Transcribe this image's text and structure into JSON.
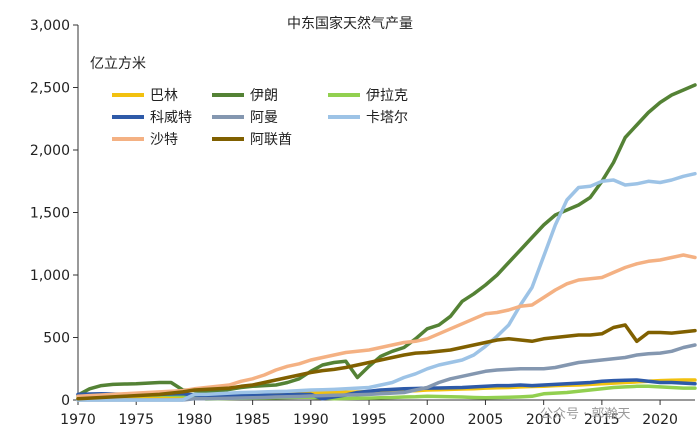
{
  "watermark": "公众号 · 郭瀚天",
  "chart_data": {
    "type": "line",
    "title": "中东国家天然气产量",
    "unit_label": "亿立方米",
    "xlabel": "",
    "ylabel": "",
    "xlim": [
      1970,
      2023
    ],
    "ylim": [
      0,
      3000
    ],
    "x_ticks": [
      1970,
      1975,
      1980,
      1985,
      1990,
      1995,
      2000,
      2005,
      2010,
      2015,
      2020
    ],
    "y_ticks": [
      0,
      500,
      1000,
      1500,
      2000,
      2500,
      3000
    ],
    "y_tick_labels": [
      "0",
      "500",
      "1,000",
      "1,500",
      "2,000",
      "2,500",
      "3,000"
    ],
    "legend_position": "top-left",
    "grid": false,
    "x": [
      1970,
      1971,
      1972,
      1973,
      1974,
      1975,
      1976,
      1977,
      1978,
      1979,
      1980,
      1981,
      1982,
      1983,
      1984,
      1985,
      1986,
      1987,
      1988,
      1989,
      1990,
      1991,
      1992,
      1993,
      1994,
      1995,
      1996,
      1997,
      1998,
      1999,
      2000,
      2001,
      2002,
      2003,
      2004,
      2005,
      2006,
      2007,
      2008,
      2009,
      2010,
      2011,
      2012,
      2013,
      2014,
      2015,
      2016,
      2017,
      2018,
      2019,
      2020,
      2021,
      2022,
      2023
    ],
    "series": [
      {
        "name": "巴林",
        "color": "#f2c10f",
        "values": [
          10,
          12,
          14,
          15,
          16,
          18,
          20,
          22,
          25,
          28,
          30,
          32,
          35,
          38,
          40,
          42,
          45,
          48,
          50,
          52,
          55,
          58,
          60,
          62,
          64,
          66,
          68,
          70,
          72,
          74,
          80,
          82,
          85,
          88,
          90,
          95,
          98,
          100,
          105,
          108,
          110,
          115,
          118,
          120,
          125,
          130,
          135,
          140,
          145,
          150,
          155,
          158,
          160,
          160
        ]
      },
      {
        "name": "伊朗",
        "color": "#548235",
        "values": [
          40,
          90,
          115,
          125,
          128,
          130,
          135,
          140,
          140,
          80,
          75,
          60,
          70,
          85,
          100,
          110,
          115,
          120,
          140,
          170,
          230,
          280,
          300,
          310,
          180,
          270,
          350,
          390,
          420,
          490,
          570,
          600,
          670,
          790,
          850,
          920,
          1000,
          1100,
          1200,
          1300,
          1400,
          1480,
          1520,
          1560,
          1620,
          1750,
          1900,
          2100,
          2200,
          2300,
          2380,
          2440,
          2480,
          2520
        ]
      },
      {
        "name": "伊拉克",
        "color": "#92d050",
        "values": [
          25,
          28,
          30,
          32,
          34,
          36,
          38,
          40,
          38,
          35,
          30,
          8,
          10,
          12,
          14,
          15,
          16,
          18,
          20,
          22,
          22,
          15,
          10,
          12,
          14,
          15,
          18,
          20,
          24,
          26,
          30,
          28,
          26,
          24,
          20,
          18,
          20,
          22,
          25,
          30,
          50,
          55,
          60,
          70,
          80,
          90,
          100,
          105,
          110,
          110,
          105,
          100,
          95,
          95
        ]
      },
      {
        "name": "科威特",
        "color": "#2e5aa8",
        "values": [
          45,
          48,
          50,
          48,
          45,
          44,
          42,
          45,
          48,
          50,
          40,
          35,
          30,
          32,
          34,
          36,
          38,
          40,
          42,
          45,
          45,
          10,
          25,
          40,
          60,
          70,
          80,
          85,
          90,
          92,
          95,
          96,
          98,
          100,
          105,
          110,
          115,
          115,
          120,
          115,
          120,
          125,
          130,
          135,
          140,
          150,
          155,
          158,
          160,
          150,
          140,
          140,
          135,
          130
        ]
      },
      {
        "name": "阿曼",
        "color": "#8497b0",
        "values": [
          0,
          0,
          0,
          0,
          0,
          0,
          0,
          0,
          0,
          0,
          10,
          10,
          12,
          14,
          16,
          18,
          20,
          24,
          26,
          28,
          32,
          35,
          38,
          40,
          42,
          45,
          50,
          55,
          60,
          80,
          100,
          140,
          170,
          190,
          210,
          230,
          240,
          245,
          250,
          250,
          250,
          260,
          280,
          300,
          310,
          320,
          330,
          340,
          360,
          370,
          375,
          390,
          420,
          440
        ]
      },
      {
        "name": "卡塔尔",
        "color": "#9dc3e6",
        "values": [
          0,
          0,
          0,
          0,
          0,
          0,
          0,
          0,
          0,
          0,
          45,
          45,
          50,
          55,
          60,
          62,
          65,
          68,
          70,
          75,
          80,
          82,
          85,
          90,
          95,
          100,
          120,
          140,
          180,
          210,
          250,
          280,
          300,
          320,
          360,
          430,
          510,
          600,
          760,
          900,
          1150,
          1400,
          1600,
          1700,
          1710,
          1750,
          1760,
          1720,
          1730,
          1750,
          1740,
          1760,
          1790,
          1810
        ]
      },
      {
        "name": "沙特",
        "color": "#f4b183",
        "values": [
          30,
          35,
          40,
          45,
          50,
          55,
          60,
          65,
          70,
          75,
          90,
          100,
          110,
          120,
          150,
          170,
          200,
          240,
          270,
          290,
          320,
          340,
          360,
          380,
          390,
          400,
          420,
          440,
          460,
          470,
          490,
          530,
          570,
          610,
          650,
          690,
          700,
          720,
          750,
          760,
          820,
          880,
          930,
          960,
          970,
          980,
          1020,
          1060,
          1090,
          1110,
          1120,
          1140,
          1160,
          1140
        ]
      },
      {
        "name": "阿联酋",
        "color": "#806000",
        "values": [
          10,
          15,
          20,
          25,
          30,
          35,
          40,
          45,
          55,
          65,
          80,
          85,
          90,
          95,
          110,
          120,
          140,
          160,
          180,
          200,
          220,
          235,
          245,
          260,
          280,
          300,
          320,
          340,
          360,
          375,
          380,
          390,
          400,
          420,
          440,
          460,
          480,
          490,
          480,
          470,
          490,
          500,
          510,
          520,
          520,
          530,
          580,
          600,
          470,
          540,
          540,
          535,
          545,
          555
        ]
      }
    ]
  }
}
